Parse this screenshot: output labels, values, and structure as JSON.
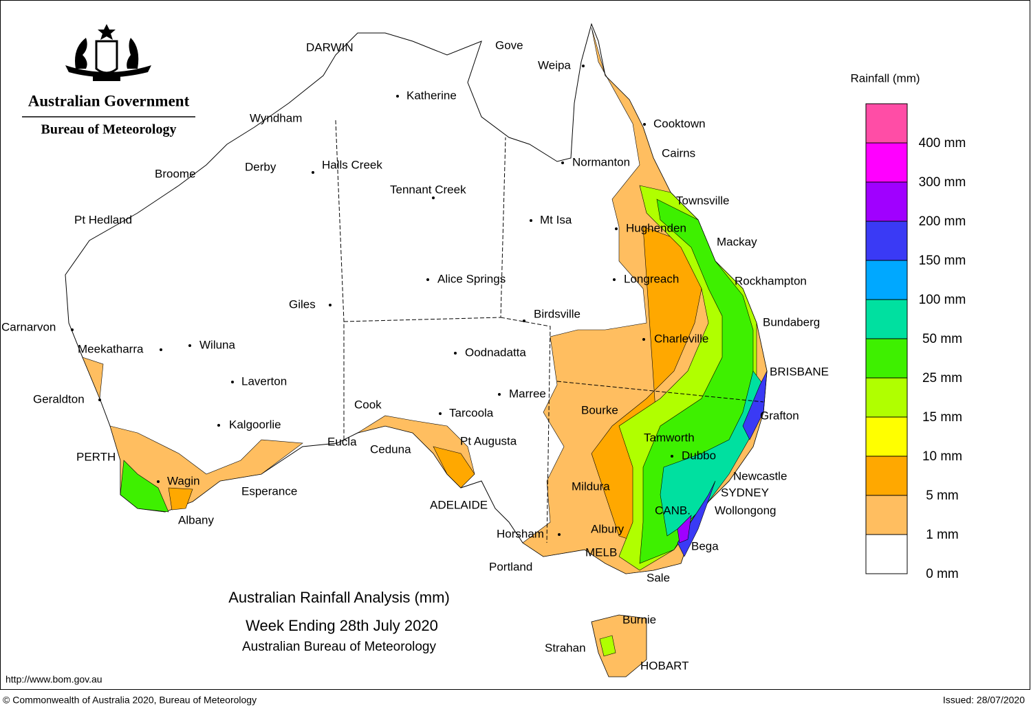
{
  "header": {
    "government": "Australian Government",
    "bureau": "Bureau of Meteorology"
  },
  "title": {
    "line1": "Australian Rainfall Analysis (mm)",
    "line2": "Week Ending 28th July 2020",
    "line3": "Australian Bureau of Meteorology"
  },
  "legend": {
    "title": "Rainfall (mm)",
    "colors": [
      "#ff4da6",
      "#ff00ff",
      "#a000ff",
      "#3a3af5",
      "#00a8ff",
      "#00e0a0",
      "#3ef000",
      "#b0ff00",
      "#ffff00",
      "#ffa800",
      "#ffbe60",
      "#ffffff"
    ],
    "labels": [
      "400 mm",
      "300 mm",
      "200 mm",
      "150 mm",
      "100 mm",
      "50 mm",
      "25 mm",
      "15 mm",
      "10 mm",
      "5 mm",
      "1 mm",
      "0 mm"
    ]
  },
  "places": [
    "DARWIN",
    "Gove",
    "Weipa",
    "Katherine",
    "Cooktown",
    "Wyndham",
    "Cairns",
    "Normanton",
    "Derby",
    "Halls Creek",
    "Broome",
    "Tennant Creek",
    "Townsville",
    "Mt Isa",
    "Pt Hedland",
    "Hughenden",
    "Mackay",
    "Alice Springs",
    "Longreach",
    "Rockhampton",
    "Giles",
    "Birdsville",
    "Bundaberg",
    "Carnarvon",
    "Charleville",
    "Meekatharra",
    "Wiluna",
    "Oodnadatta",
    "BRISBANE",
    "Laverton",
    "Marree",
    "Geraldton",
    "Cook",
    "Bourke",
    "Tarcoola",
    "Grafton",
    "Kalgoorlie",
    "Tamworth",
    "Eucla",
    "Pt Augusta",
    "Ceduna",
    "PERTH",
    "Dubbo",
    "Newcastle",
    "Wagin",
    "Mildura",
    "Esperance",
    "SYDNEY",
    "ADELAIDE",
    "CANB.",
    "Wollongong",
    "Albany",
    "Albury",
    "Horsham",
    "Bega",
    "MELB",
    "Portland",
    "Sale",
    "Burnie",
    "Strahan",
    "HOBART"
  ],
  "footer": {
    "url": "http://www.bom.gov.au",
    "copyright": "© Commonwealth of Australia 2020, Bureau of Meteorology",
    "issued": "Issued: 28/07/2020"
  }
}
